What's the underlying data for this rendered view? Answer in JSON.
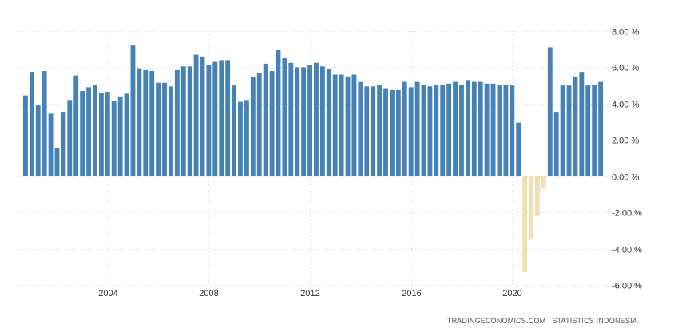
{
  "attribution": "TRADINGECONOMICS.COM  |  STATISTICS INDONESIA",
  "colors": {
    "positive": "#4682b4",
    "negative": "#f5deb3"
  },
  "chart_data": {
    "type": "bar",
    "ylim": [
      -6,
      8
    ],
    "yticks": [
      8,
      6,
      4,
      2,
      0,
      -2,
      -4,
      -6
    ],
    "ytick_labels": [
      "8.00 %",
      "6.00 %",
      "4.00 %",
      "2.00 %",
      "0.00 %",
      "-2.00 %",
      "-4.00 %",
      "-6.00 %"
    ],
    "xticks": [
      2004,
      2008,
      2012,
      2016,
      2020
    ],
    "xtick_labels": [
      "2004",
      "2008",
      "2012",
      "2016",
      "2020"
    ],
    "xlim": [
      2000.5,
      2023.75
    ],
    "grid": true,
    "series": [
      {
        "x": [
          2000.75,
          2001.0,
          2001.25,
          2001.5,
          2001.75,
          2002.0,
          2002.25,
          2002.5,
          2002.75,
          2003.0,
          2003.25,
          2003.5,
          2003.75,
          2004.0,
          2004.25,
          2004.5,
          2004.75,
          2005.0,
          2005.25,
          2005.5,
          2005.75,
          2006.0,
          2006.25,
          2006.5,
          2006.75,
          2007.0,
          2007.25,
          2007.5,
          2007.75,
          2008.0,
          2008.25,
          2008.5,
          2008.75,
          2009.0,
          2009.25,
          2009.5,
          2009.75,
          2010.0,
          2010.25,
          2010.5,
          2010.75,
          2011.0,
          2011.25,
          2011.5,
          2011.75,
          2012.0,
          2012.25,
          2012.5,
          2012.75,
          2013.0,
          2013.25,
          2013.5,
          2013.75,
          2014.0,
          2014.25,
          2014.5,
          2014.75,
          2015.0,
          2015.25,
          2015.5,
          2015.75,
          2016.0,
          2016.25,
          2016.5,
          2016.75,
          2017.0,
          2017.25,
          2017.5,
          2017.75,
          2018.0,
          2018.25,
          2018.5,
          2018.75,
          2019.0,
          2019.25,
          2019.5,
          2019.75,
          2020.0,
          2020.25,
          2020.5,
          2020.75,
          2021.0,
          2021.25,
          2021.5,
          2021.75,
          2022.0,
          2022.25,
          2022.5,
          2022.75,
          2023.0,
          2023.25,
          2023.5
        ],
        "values": [
          4.45,
          5.75,
          3.9,
          5.8,
          3.45,
          1.55,
          3.55,
          4.2,
          5.55,
          4.7,
          4.9,
          5.05,
          4.6,
          4.65,
          4.15,
          4.4,
          4.55,
          7.2,
          5.95,
          5.85,
          5.8,
          5.15,
          5.15,
          4.95,
          5.85,
          6.05,
          6.05,
          6.7,
          6.6,
          6.15,
          6.3,
          6.4,
          6.4,
          5.0,
          4.1,
          4.2,
          5.45,
          5.7,
          6.2,
          5.8,
          6.95,
          6.5,
          6.25,
          6.0,
          6.0,
          6.15,
          6.25,
          6.05,
          5.9,
          5.6,
          5.6,
          5.5,
          5.6,
          5.2,
          4.95,
          4.95,
          5.05,
          4.85,
          4.75,
          4.75,
          5.2,
          4.9,
          5.2,
          5.05,
          4.95,
          5.05,
          5.05,
          5.1,
          5.2,
          5.05,
          5.3,
          5.2,
          5.2,
          5.1,
          5.1,
          5.05,
          5.05,
          5.0,
          2.95,
          -5.3,
          -3.5,
          -2.2,
          -0.7,
          7.1,
          3.55,
          5.0,
          5.0,
          5.45,
          5.75,
          5.0,
          5.05,
          5.2
        ]
      }
    ]
  }
}
